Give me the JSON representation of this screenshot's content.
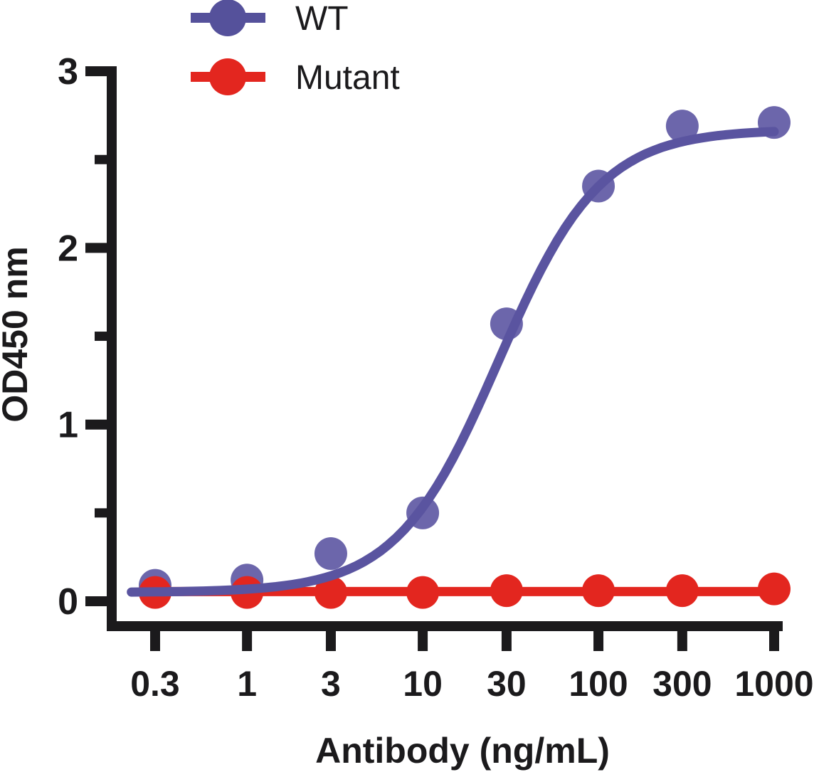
{
  "chart_data": {
    "type": "scatter",
    "title": "",
    "xlabel": "Antibody (ng/mL)",
    "ylabel": "OD450 nm",
    "x_scale": "log",
    "xlim": [
      0.22,
      1000
    ],
    "ylim": [
      0,
      3
    ],
    "x_ticks": [
      0.3,
      1,
      3,
      10,
      30,
      100,
      300,
      1000
    ],
    "x_tick_labels": [
      "0.3",
      "1",
      "3",
      "10",
      "30",
      "100",
      "300",
      "1000"
    ],
    "y_ticks": [
      0,
      1,
      2,
      3
    ],
    "y_tick_labels": [
      "0",
      "1",
      "2",
      "3"
    ],
    "y_minor_ticks": [
      0.5,
      1.5,
      2.5
    ],
    "grid": false,
    "legend_position": "top-left",
    "axis_color": "#1b1a1c",
    "series": [
      {
        "name": "WT",
        "color": "#5a54a0",
        "marker_color": "#6c66ab",
        "legend_color": "#55519b",
        "x": [
          0.3,
          1,
          3,
          10,
          30,
          100,
          300,
          1000
        ],
        "values": [
          0.09,
          0.12,
          0.27,
          0.5,
          1.57,
          2.35,
          2.69,
          2.71
        ],
        "fit": {
          "model": "4PL",
          "bottom": 0.05,
          "top": 2.67,
          "ec50": 27,
          "hill": 1.5
        }
      },
      {
        "name": "Mutant",
        "color": "#e3261f",
        "marker_color": "#e3261f",
        "legend_color": "#e3261f",
        "x": [
          0.3,
          1,
          3,
          10,
          30,
          100,
          300,
          1000
        ],
        "values": [
          0.05,
          0.05,
          0.05,
          0.05,
          0.06,
          0.06,
          0.06,
          0.07
        ],
        "fit": {
          "model": "flat",
          "value": 0.055
        }
      }
    ]
  }
}
